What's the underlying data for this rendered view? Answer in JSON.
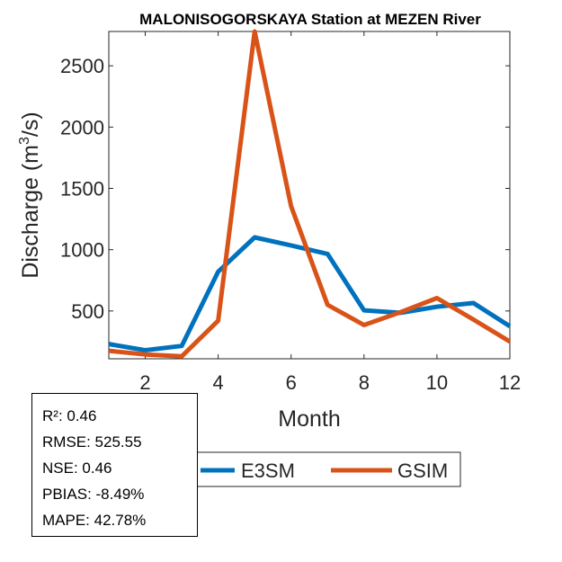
{
  "chart_data": {
    "type": "line",
    "title": "MALONISOGORSKAYA  Station at  MEZEN  River",
    "xlabel": "Month",
    "ylabel_main": "Discharge (m",
    "ylabel_sup": "3",
    "ylabel_tail": "/s)",
    "xlim": [
      1,
      12
    ],
    "ylim": [
      110,
      2780
    ],
    "xticks": [
      2,
      4,
      6,
      8,
      10,
      12
    ],
    "yticks": [
      500,
      1000,
      1500,
      2000,
      2500
    ],
    "x": [
      1,
      2,
      3,
      4,
      5,
      6,
      7,
      8,
      9,
      10,
      11,
      12
    ],
    "series": [
      {
        "name": "E3SM",
        "color": "#0072BD",
        "values": [
          230,
          180,
          215,
          820,
          1100,
          1035,
          965,
          505,
          485,
          535,
          565,
          375
        ]
      },
      {
        "name": "GSIM",
        "color": "#D95319",
        "values": [
          175,
          145,
          130,
          420,
          2780,
          1355,
          550,
          385,
          490,
          605,
          430,
          250
        ]
      }
    ],
    "legend_placement": "bottom-center",
    "stats": [
      "R²: 0.46",
      "RMSE: 525.55",
      "NSE: 0.46",
      "PBIAS: -8.49%",
      "MAPE: 42.78%"
    ]
  }
}
